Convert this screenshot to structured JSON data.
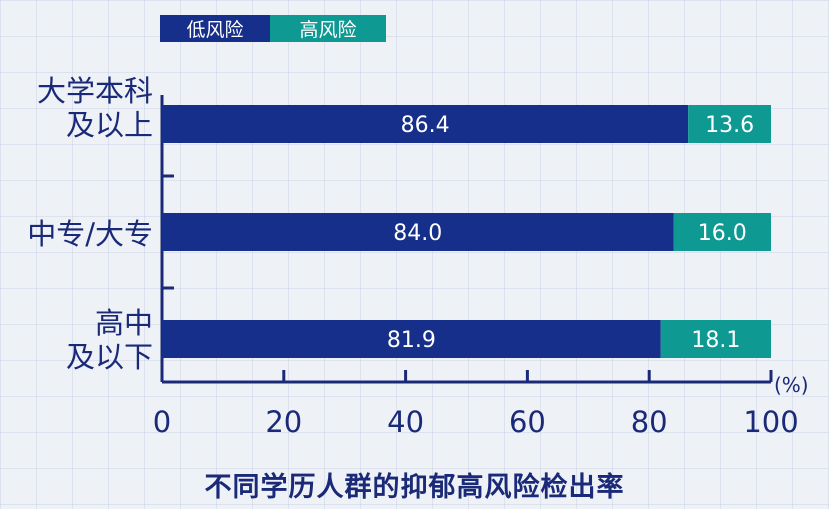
{
  "colors": {
    "low": "#152f8a",
    "high": "#0e9a92",
    "axis": "#1b2a78",
    "text": "#1b2a78"
  },
  "legend": [
    {
      "label": "低风险",
      "color": "#152f8a"
    },
    {
      "label": "高风险",
      "color": "#0e9a92"
    }
  ],
  "chart_data": {
    "type": "bar",
    "orientation": "horizontal",
    "stacked": true,
    "title": "不同学历人群的抑郁高风险检出率",
    "unit": "(%)",
    "xlim": [
      0,
      100
    ],
    "xticks": [
      "0",
      "20",
      "40",
      "60",
      "80",
      "100"
    ],
    "categories": [
      "大学本科\n及以上",
      "中专/大专",
      "高中\n及以下"
    ],
    "series": [
      {
        "name": "低风险",
        "values": [
          86.4,
          84.0,
          81.9
        ],
        "labels": [
          "86.4",
          "84.0",
          "81.9"
        ]
      },
      {
        "name": "高风险",
        "values": [
          13.6,
          16.0,
          18.1
        ],
        "labels": [
          "13.6",
          "16.0",
          "18.1"
        ]
      }
    ],
    "grid": false,
    "legend_position": "top-left"
  }
}
